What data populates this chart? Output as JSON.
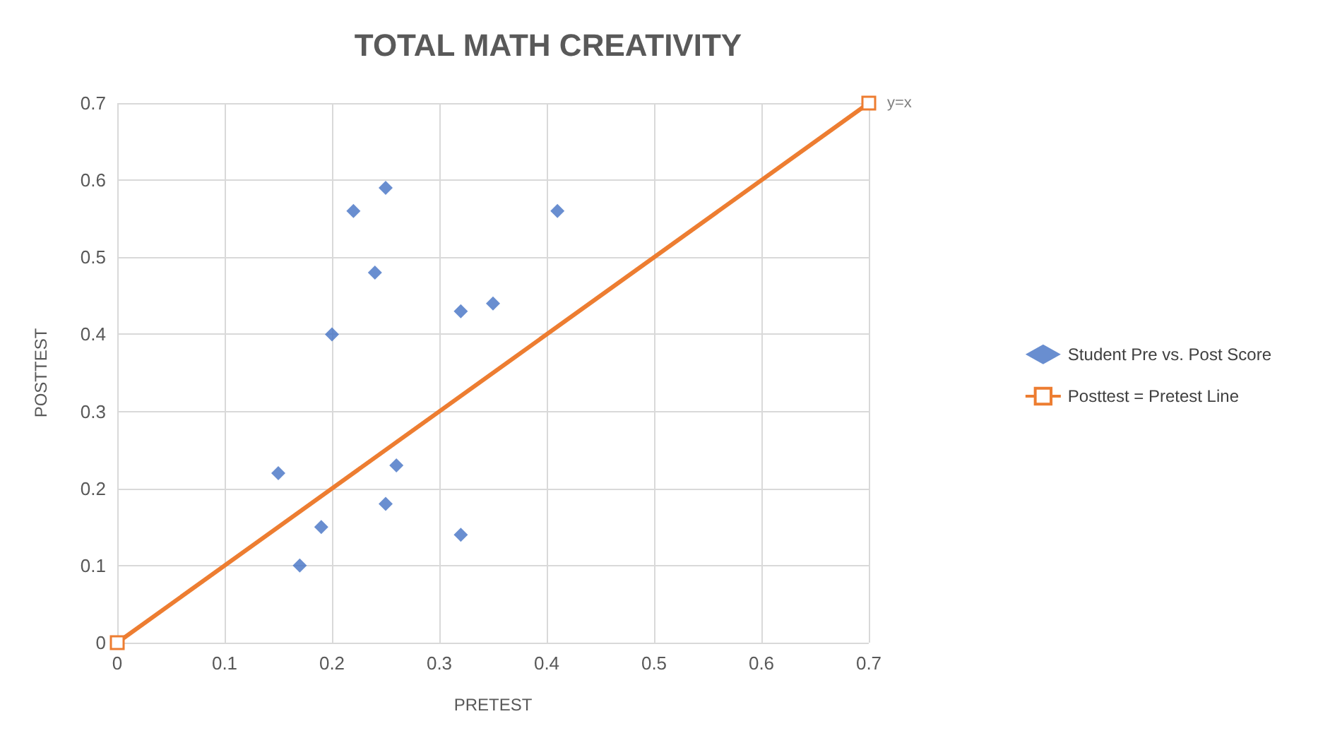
{
  "chart_data": {
    "type": "scatter",
    "title": "TOTAL MATH CREATIVITY",
    "xlabel": "PRETEST",
    "ylabel": "POSTTEST",
    "series": [
      {
        "name": "Student Pre vs. Post Score",
        "color": "#4472c4",
        "marker": "diamond",
        "x": [
          0.15,
          0.17,
          0.19,
          0.2,
          0.22,
          0.24,
          0.25,
          0.25,
          0.26,
          0.32,
          0.32,
          0.35,
          0.41
        ],
        "values": [
          0.22,
          0.1,
          0.15,
          0.4,
          0.56,
          0.48,
          0.59,
          0.18,
          0.23,
          0.43,
          0.14,
          0.44,
          0.56
        ]
      },
      {
        "name": "Posttest = Pretest Line",
        "type": "line",
        "color": "#ed7d31",
        "marker": "square",
        "x": [
          0,
          0.7
        ],
        "values": [
          0,
          0.7
        ]
      }
    ],
    "annotations": [
      {
        "text": "y=x",
        "x": 0.7,
        "y": 0.7
      }
    ],
    "xlim": [
      0,
      0.7
    ],
    "xticks": [
      0,
      0.1,
      0.2,
      0.3,
      0.4,
      0.5,
      0.6,
      0.7
    ],
    "ylim": [
      0,
      0.7
    ],
    "yticks": [
      0,
      0.1,
      0.2,
      0.3,
      0.4,
      0.5,
      0.6,
      0.7
    ],
    "grid": true,
    "legend": "right"
  }
}
